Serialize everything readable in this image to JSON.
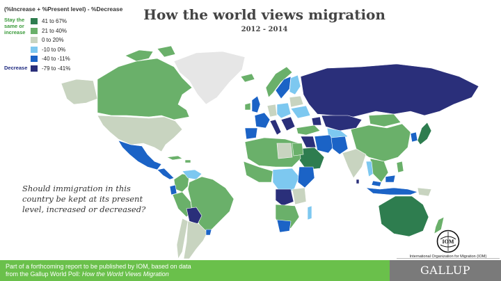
{
  "title": "How the world views migration",
  "subtitle": "2012 - 2014",
  "legend": {
    "header": "(%Increase + %Present level) - %Decrease",
    "stay_label": "Stay the same or increase",
    "decrease_label": "Decrease",
    "items": [
      {
        "label": "41 to 67%",
        "color": "#2e7d4f"
      },
      {
        "label": "21 to 40%",
        "color": "#6ab06a"
      },
      {
        "label": "0 to 20%",
        "color": "#c8d4c0"
      },
      {
        "label": "-10 to 0%",
        "color": "#7dc8f0"
      },
      {
        "label": "-40 to -11%",
        "color": "#1b63c6"
      },
      {
        "label": "-79 to -41%",
        "color": "#2a2f7a"
      }
    ]
  },
  "question": "Should immigration in this country be kept at its present level, increased or decreased?",
  "iom": {
    "name": "International Organization for Migration (IOM)",
    "logo_text": "IOM"
  },
  "footer": {
    "line1": "Part of a forthcoming report to be published by IOM, based on data",
    "line2_prefix": "from the Gallup World Poll: ",
    "line2_italic": "How the World Views Migration"
  },
  "brand": "GALLUP",
  "colors": {
    "no_data": "#e6e6e6",
    "footer_green": "#6ac04b",
    "brand_gray": "#7a7a7a",
    "title": "#444444"
  }
}
